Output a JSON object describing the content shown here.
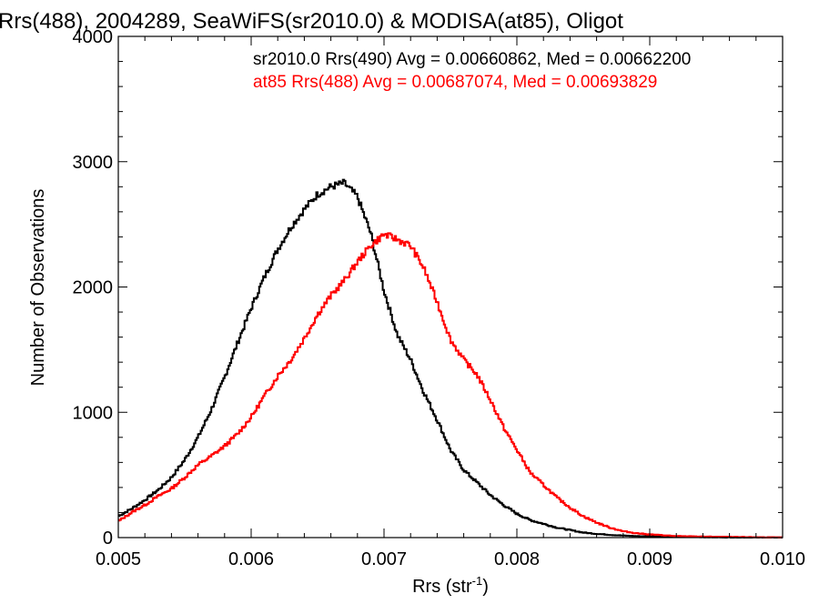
{
  "chart_data": {
    "type": "line",
    "title": "Rrs(488), 2004289, SeaWiFS(sr2010.0) & MODISA(at85), Oligot",
    "xlabel": "Rrs (str",
    "xlabel_sup": "-1",
    "xlabel_end": ")",
    "ylabel": "Number of Observations",
    "xlim": [
      0.005,
      0.01
    ],
    "ylim": [
      0,
      4000
    ],
    "x_ticks": [
      "0.005",
      "0.006",
      "0.007",
      "0.008",
      "0.009",
      "0.010"
    ],
    "y_ticks": [
      "0",
      "1000",
      "2000",
      "3000",
      "4000"
    ],
    "x_tick_values": [
      0.005,
      0.006,
      0.007,
      0.008,
      0.009,
      0.01
    ],
    "y_tick_values": [
      0,
      1000,
      2000,
      3000,
      4000
    ],
    "grid": false,
    "legend_position": "top-right",
    "series": [
      {
        "name": "sr2010.0 Rrs(490) Avg = 0.00660862, Med = 0.00662200",
        "color": "#000000",
        "x": [
          0.005,
          0.0051,
          0.0052,
          0.0053,
          0.0054,
          0.0055,
          0.0056,
          0.0057,
          0.0058,
          0.0059,
          0.006,
          0.0061,
          0.0062,
          0.0063,
          0.0064,
          0.0065,
          0.0066,
          0.0067,
          0.0068,
          0.0069,
          0.007,
          0.0071,
          0.0072,
          0.0073,
          0.0074,
          0.0075,
          0.0076,
          0.0077,
          0.0078,
          0.0079,
          0.008,
          0.0081,
          0.0082,
          0.0083,
          0.0084,
          0.0085,
          0.0086,
          0.0087,
          0.0088,
          0.0089,
          0.009,
          0.0092,
          0.0094,
          0.0096,
          0.0098,
          0.01
        ],
        "values": [
          170,
          230,
          300,
          380,
          480,
          620,
          800,
          1020,
          1280,
          1560,
          1830,
          2080,
          2300,
          2480,
          2620,
          2740,
          2800,
          2830,
          2720,
          2430,
          1970,
          1620,
          1420,
          1160,
          940,
          700,
          540,
          440,
          340,
          260,
          190,
          140,
          110,
          80,
          60,
          40,
          30,
          22,
          16,
          12,
          10,
          6,
          4,
          2,
          1,
          0
        ]
      },
      {
        "name": "at85 Rrs(488) Avg = 0.00687074, Med = 0.00693829",
        "color": "#ff0000",
        "x": [
          0.005,
          0.0051,
          0.0052,
          0.0053,
          0.0054,
          0.0055,
          0.0056,
          0.0057,
          0.0058,
          0.0059,
          0.006,
          0.0061,
          0.0062,
          0.0063,
          0.0064,
          0.0065,
          0.0066,
          0.0067,
          0.0068,
          0.0069,
          0.007,
          0.0071,
          0.0072,
          0.0073,
          0.0074,
          0.0075,
          0.0076,
          0.0077,
          0.0078,
          0.0079,
          0.008,
          0.0081,
          0.0082,
          0.0083,
          0.0084,
          0.0085,
          0.0086,
          0.0087,
          0.0088,
          0.0089,
          0.009,
          0.0092,
          0.0094,
          0.0096,
          0.0098,
          0.01
        ],
        "values": [
          130,
          200,
          260,
          330,
          390,
          480,
          580,
          650,
          730,
          830,
          960,
          1130,
          1290,
          1420,
          1590,
          1780,
          1930,
          2050,
          2200,
          2330,
          2420,
          2380,
          2330,
          2150,
          1880,
          1580,
          1420,
          1300,
          1100,
          880,
          700,
          520,
          420,
          320,
          240,
          170,
          120,
          80,
          50,
          35,
          25,
          12,
          8,
          5,
          3,
          1
        ]
      }
    ]
  }
}
